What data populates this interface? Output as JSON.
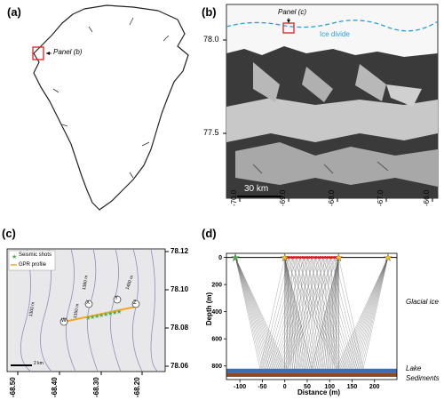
{
  "panels": {
    "a": {
      "label": "(a)",
      "callout": "Panel (b)"
    },
    "b": {
      "label": "(b)",
      "callout": "Panel (c)",
      "ice_divide": "Ice divide",
      "scale_bar": "30 km",
      "y_ticks": [
        "78.0",
        "77.5"
      ],
      "x_ticks": [
        "-70.0",
        "-69.0",
        "-68.0",
        "-67.0",
        "-66.0"
      ],
      "colors": {
        "ice_divide": "#2a9fd6",
        "box": "#e02020"
      }
    },
    "c": {
      "label": "(c)",
      "legend": {
        "seismic": "Seismic shots",
        "gpr": "GPR profile"
      },
      "points": [
        "W",
        "X",
        "Y",
        "Z"
      ],
      "contour_labels": [
        "1300 m",
        "1350 m",
        "1380 m",
        "1400 m"
      ],
      "scale_bar": "2 km",
      "y_ticks": [
        "78.12",
        "78.10",
        "78.08",
        "78.06"
      ],
      "x_ticks": [
        "-68.50",
        "-68.40",
        "-68.30",
        "-68.20"
      ],
      "colors": {
        "gpr": "#f5a623",
        "seismic": "#4caf50"
      }
    },
    "d": {
      "label": "(d)",
      "xlabel": "Distance (m)",
      "ylabel": "Depth (m)",
      "layers": {
        "ice": "Glacial ice",
        "lake": "Lake",
        "sediments": "Sediments"
      },
      "colors": {
        "lake": "#3a6fb5",
        "sediments": "#8b4a2b",
        "source": "#f5c518",
        "source_green": "#4caf50",
        "receiver": "#e02020"
      }
    }
  },
  "chart_data": {
    "type": "scatter",
    "xlabel": "Distance (m)",
    "ylabel": "Depth (m)",
    "xlim": [
      -130,
      250
    ],
    "ylim": [
      900,
      -30
    ],
    "x_ticks": [
      -100,
      -50,
      0,
      50,
      100,
      150,
      200
    ],
    "y_ticks": [
      0,
      200,
      400,
      600,
      800
    ],
    "sources": [
      {
        "x": -110,
        "y": 0,
        "color": "green"
      },
      {
        "x": 0,
        "y": 0,
        "color": "yellow"
      },
      {
        "x": 120,
        "y": 0,
        "color": "yellow"
      },
      {
        "x": 230,
        "y": 0,
        "color": "yellow"
      }
    ],
    "receiver_span": [
      0,
      120
    ],
    "lake_depth": [
      820,
      850
    ],
    "sediment_depth": [
      850,
      880
    ]
  }
}
